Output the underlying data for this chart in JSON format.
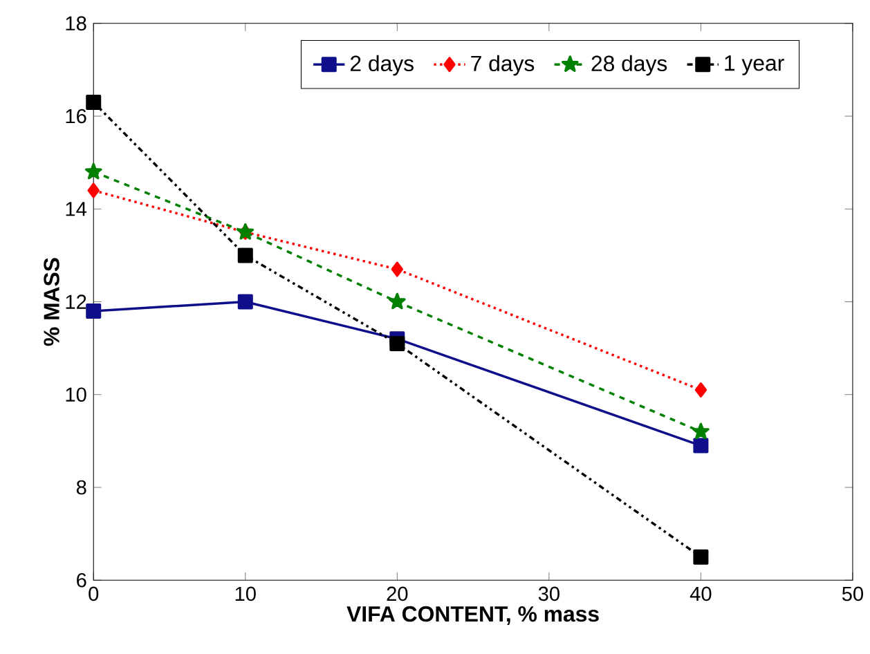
{
  "chart_data": {
    "type": "line",
    "xlabel": "VIFA CONTENT, % mass",
    "ylabel": "% MASS",
    "x": [
      0,
      10,
      20,
      40
    ],
    "xlim": [
      0,
      50
    ],
    "ylim": [
      6,
      18
    ],
    "xticks": [
      0,
      10,
      20,
      30,
      40,
      50
    ],
    "yticks": [
      6,
      8,
      10,
      12,
      14,
      16,
      18
    ],
    "grid": false,
    "legend": "top",
    "series": [
      {
        "name": "2 days",
        "color": "#0f0f8c",
        "values": [
          11.8,
          12.0,
          11.2,
          8.9
        ],
        "marker": "square",
        "line_style": "solid"
      },
      {
        "name": "7 days",
        "color": "#ff0000",
        "values": [
          14.4,
          13.5,
          12.7,
          10.1
        ],
        "marker": "diamond",
        "line_style": "dotted"
      },
      {
        "name": "28 days",
        "color": "#008000",
        "values": [
          14.8,
          13.5,
          12.0,
          9.2
        ],
        "marker": "star",
        "line_style": "dashed"
      },
      {
        "name": "1 year",
        "color": "#000000",
        "values": [
          16.3,
          13.0,
          11.1,
          6.5
        ],
        "marker": "square",
        "line_style": "dashdotdot"
      }
    ]
  }
}
